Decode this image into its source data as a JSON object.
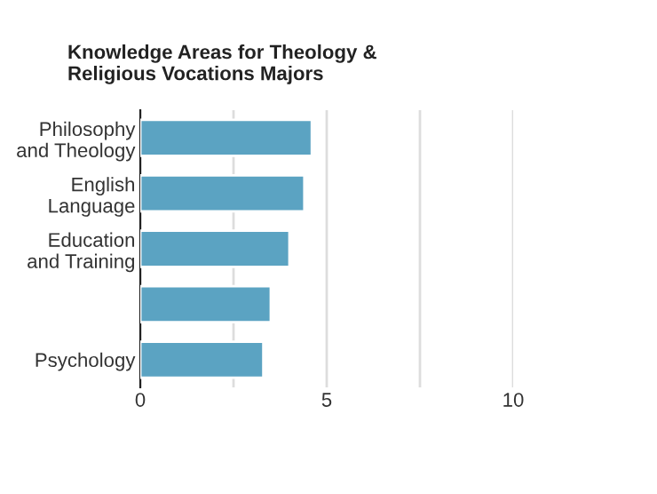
{
  "chart_data": {
    "type": "bar",
    "orientation": "horizontal",
    "title": "Knowledge Areas for Theology &\nReligious Vocations Majors",
    "categories": [
      "Philosophy\nand Theology",
      "English\nLanguage",
      "Education\nand Training",
      null,
      "Psychology"
    ],
    "values": [
      4.6,
      4.4,
      4.0,
      3.5,
      3.3
    ],
    "color": "#5ba3c2",
    "xlim": [
      0,
      10
    ],
    "xticks": [
      0,
      {
        "value": 2.5,
        "label": null
      },
      5,
      {
        "value": 7.5,
        "label": null
      },
      10
    ],
    "grid": "x"
  }
}
